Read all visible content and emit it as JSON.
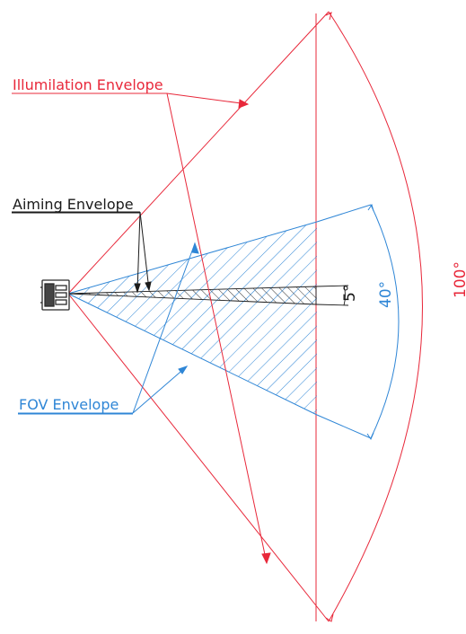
{
  "labels": {
    "illumination": "Illumilation Envelope",
    "aiming": "Aiming Envelope",
    "fov": "FOV Envelope"
  },
  "angles": {
    "aiming": "5°",
    "fov": "40°",
    "illumination": "100°"
  },
  "colors": {
    "illumination": "#e8283a",
    "fov": "#2f86d6",
    "aiming": "#1a1a1a",
    "device": "#2a2a2a"
  }
}
